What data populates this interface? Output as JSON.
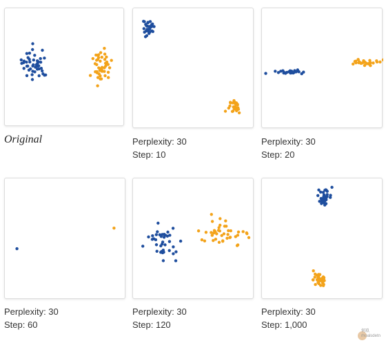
{
  "colors": {
    "blue": "#1f4e9e",
    "orange": "#f3a31a"
  },
  "panels": [
    {
      "title": "Original",
      "perplexity": "",
      "step": ""
    },
    {
      "title": "",
      "perplexity": "Perplexity: 30",
      "step": "Step: 10"
    },
    {
      "title": "",
      "perplexity": "Perplexity: 30",
      "step": "Step: 20"
    },
    {
      "title": "",
      "perplexity": "Perplexity: 30",
      "step": "Step: 60"
    },
    {
      "title": "",
      "perplexity": "Perplexity: 30",
      "step": "Step: 120"
    },
    {
      "title": "",
      "perplexity": "Perplexity: 30",
      "step": "Step: 1,000"
    }
  ],
  "watermark": {
    "line1": "何玖",
    "line2": "rhoalsdetn"
  },
  "chart_data": [
    {
      "type": "scatter",
      "title": "Original",
      "xlim": [
        0,
        100
      ],
      "ylim": [
        0,
        100
      ],
      "series": [
        {
          "color": "blue",
          "cluster": {
            "cx": 25,
            "cy": 47,
            "sx": 5.5,
            "sy": 6.5,
            "n": 45
          }
        },
        {
          "color": "orange",
          "cluster": {
            "cx": 80,
            "cy": 48,
            "sx": 4.2,
            "sy": 7.0,
            "n": 45
          }
        }
      ]
    },
    {
      "type": "scatter",
      "title": "Perplexity: 30, Step: 10",
      "xlim": [
        0,
        100
      ],
      "ylim": [
        0,
        100
      ],
      "series": [
        {
          "color": "blue",
          "cluster": {
            "cx": 13,
            "cy": 16,
            "sx": 2.3,
            "sy": 3.5,
            "n": 30
          }
        },
        {
          "color": "orange",
          "cluster": {
            "cx": 83,
            "cy": 82,
            "sx": 3.0,
            "sy": 3.2,
            "n": 30
          }
        }
      ]
    },
    {
      "type": "scatter",
      "title": "Perplexity: 30, Step: 20",
      "xlim": [
        0,
        100
      ],
      "ylim": [
        0,
        100
      ],
      "series": [
        {
          "color": "blue",
          "cluster": {
            "cx": 24,
            "cy": 53,
            "sx": 6.0,
            "sy": 0.9,
            "n": 30
          }
        },
        {
          "color": "orange",
          "cluster": {
            "cx": 85,
            "cy": 45,
            "sx": 5.5,
            "sy": 1.1,
            "n": 30
          }
        }
      ]
    },
    {
      "type": "scatter",
      "title": "Perplexity: 30, Step: 60",
      "xlim": [
        0,
        100
      ],
      "ylim": [
        0,
        100
      ],
      "series": [
        {
          "color": "blue",
          "points": [
            [
              10,
              58
            ]
          ]
        },
        {
          "color": "orange",
          "points": [
            [
              90,
              41
            ]
          ]
        }
      ]
    },
    {
      "type": "scatter",
      "title": "Perplexity: 30, Step: 120",
      "xlim": [
        0,
        100
      ],
      "ylim": [
        0,
        100
      ],
      "series": [
        {
          "color": "blue",
          "cluster": {
            "cx": 24,
            "cy": 54,
            "sx": 5.5,
            "sy": 8.0,
            "n": 42
          }
        },
        {
          "color": "orange",
          "cluster": {
            "cx": 76,
            "cy": 45,
            "sx": 11.0,
            "sy": 4.5,
            "n": 42
          }
        }
      ]
    },
    {
      "type": "scatter",
      "title": "Perplexity: 30, Step: 1,000",
      "xlim": [
        0,
        100
      ],
      "ylim": [
        0,
        100
      ],
      "series": [
        {
          "color": "blue",
          "cluster": {
            "cx": 51,
            "cy": 15,
            "sx": 3.0,
            "sy": 3.0,
            "n": 35
          }
        },
        {
          "color": "orange",
          "cluster": {
            "cx": 48,
            "cy": 84,
            "sx": 2.8,
            "sy": 4.2,
            "n": 35
          }
        }
      ]
    }
  ]
}
